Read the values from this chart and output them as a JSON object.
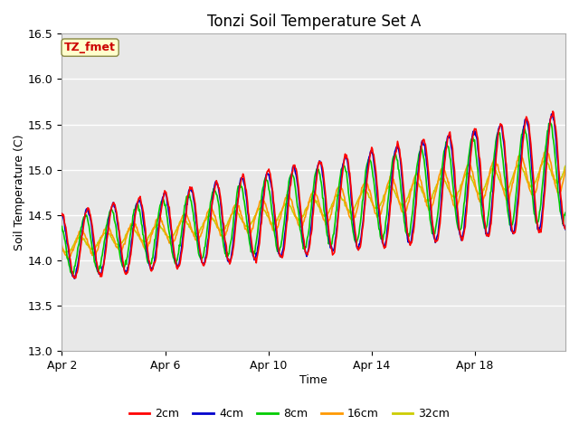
{
  "title": "Tonzi Soil Temperature Set A",
  "xlabel": "Time",
  "ylabel": "Soil Temperature (C)",
  "ylim": [
    13.0,
    16.5
  ],
  "xlim_days": [
    0,
    19.5
  ],
  "x_ticks_days": [
    0,
    4,
    8,
    12,
    16
  ],
  "x_tick_labels": [
    "Apr 2",
    "Apr 6",
    "Apr 10",
    "Apr 14",
    "Apr 18"
  ],
  "y_ticks": [
    13.0,
    13.5,
    14.0,
    14.5,
    15.0,
    15.5,
    16.0,
    16.5
  ],
  "line_colors": {
    "2cm": "#ff0000",
    "4cm": "#0000cc",
    "8cm": "#00cc00",
    "16cm": "#ff9900",
    "32cm": "#cccc00"
  },
  "legend_labels": [
    "2cm",
    "4cm",
    "8cm",
    "16cm",
    "32cm"
  ],
  "annotation_text": "TZ_fmet",
  "annotation_color": "#cc0000",
  "annotation_bg": "#ffffcc",
  "annotation_border": "#888844",
  "plot_bg": "#e8e8e8",
  "fig_bg": "#ffffff",
  "grid_color": "#ffffff",
  "title_fontsize": 12,
  "label_fontsize": 9,
  "tick_fontsize": 9,
  "legend_fontsize": 9
}
